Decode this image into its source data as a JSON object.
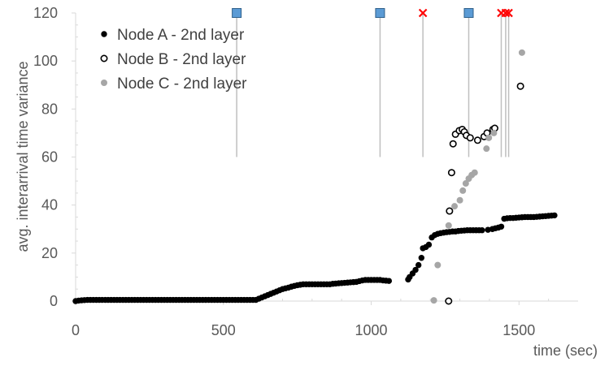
{
  "chart_data": {
    "type": "scatter",
    "xlabel": "time (sec)",
    "ylabel": "avg. interarrival time variance",
    "xlim": [
      0,
      1700
    ],
    "ylim": [
      0,
      120
    ],
    "x_ticks": [
      0,
      500,
      1000,
      1500
    ],
    "y_ticks": [
      0,
      20,
      40,
      60,
      80,
      100,
      120
    ],
    "x_tick_labels": [
      "0",
      "500",
      "1000",
      "1500"
    ],
    "y_tick_labels": [
      "0",
      "20",
      "40",
      "60",
      "80",
      "100",
      "120"
    ],
    "grid": false,
    "legend_position": "top-left",
    "colors": {
      "node_a": "#000000",
      "node_b_edge": "#000000",
      "node_c": "#a6a6a6",
      "event_line": "#bfbfbf",
      "square_marker": "#5b9bd5",
      "cross_marker": "#ff0000",
      "axis": "#d9d9d9"
    },
    "series": [
      {
        "name": "Node A - 2nd layer",
        "marker": "filled-circle",
        "points": [
          [
            0,
            0
          ],
          [
            10,
            0.2
          ],
          [
            20,
            0.3
          ],
          [
            30,
            0.4
          ],
          [
            40,
            0.5
          ],
          [
            50,
            0.5
          ],
          [
            60,
            0.5
          ],
          [
            70,
            0.5
          ],
          [
            80,
            0.5
          ],
          [
            90,
            0.5
          ],
          [
            100,
            0.5
          ],
          [
            110,
            0.5
          ],
          [
            120,
            0.5
          ],
          [
            130,
            0.5
          ],
          [
            140,
            0.5
          ],
          [
            150,
            0.5
          ],
          [
            160,
            0.5
          ],
          [
            170,
            0.5
          ],
          [
            180,
            0.5
          ],
          [
            190,
            0.5
          ],
          [
            200,
            0.5
          ],
          [
            210,
            0.5
          ],
          [
            220,
            0.5
          ],
          [
            230,
            0.5
          ],
          [
            240,
            0.5
          ],
          [
            250,
            0.5
          ],
          [
            260,
            0.5
          ],
          [
            270,
            0.5
          ],
          [
            280,
            0.5
          ],
          [
            290,
            0.5
          ],
          [
            300,
            0.5
          ],
          [
            310,
            0.5
          ],
          [
            320,
            0.5
          ],
          [
            330,
            0.5
          ],
          [
            340,
            0.5
          ],
          [
            350,
            0.5
          ],
          [
            360,
            0.5
          ],
          [
            370,
            0.5
          ],
          [
            380,
            0.5
          ],
          [
            390,
            0.5
          ],
          [
            400,
            0.5
          ],
          [
            410,
            0.5
          ],
          [
            420,
            0.5
          ],
          [
            430,
            0.5
          ],
          [
            440,
            0.5
          ],
          [
            450,
            0.5
          ],
          [
            460,
            0.5
          ],
          [
            470,
            0.5
          ],
          [
            480,
            0.5
          ],
          [
            490,
            0.5
          ],
          [
            500,
            0.5
          ],
          [
            510,
            0.5
          ],
          [
            520,
            0.5
          ],
          [
            530,
            0.5
          ],
          [
            540,
            0.5
          ],
          [
            550,
            0.5
          ],
          [
            560,
            0.5
          ],
          [
            570,
            0.5
          ],
          [
            580,
            0.5
          ],
          [
            590,
            0.5
          ],
          [
            600,
            0.5
          ],
          [
            610,
            0.5
          ],
          [
            620,
            1
          ],
          [
            630,
            1.5
          ],
          [
            640,
            2
          ],
          [
            650,
            2.5
          ],
          [
            660,
            3
          ],
          [
            670,
            3.5
          ],
          [
            680,
            4
          ],
          [
            690,
            4.5
          ],
          [
            700,
            5
          ],
          [
            710,
            5.3
          ],
          [
            720,
            5.6
          ],
          [
            730,
            6
          ],
          [
            740,
            6.3
          ],
          [
            750,
            6.6
          ],
          [
            760,
            6.8
          ],
          [
            770,
            7
          ],
          [
            780,
            7
          ],
          [
            790,
            7
          ],
          [
            800,
            7
          ],
          [
            810,
            7
          ],
          [
            820,
            7
          ],
          [
            830,
            7
          ],
          [
            840,
            7
          ],
          [
            850,
            7
          ],
          [
            860,
            7
          ],
          [
            870,
            7.2
          ],
          [
            880,
            7.3
          ],
          [
            890,
            7.4
          ],
          [
            900,
            7.5
          ],
          [
            910,
            7.6
          ],
          [
            920,
            7.7
          ],
          [
            930,
            7.8
          ],
          [
            940,
            7.9
          ],
          [
            950,
            8
          ],
          [
            960,
            8.3
          ],
          [
            970,
            8.6
          ],
          [
            980,
            8.8
          ],
          [
            990,
            8.8
          ],
          [
            1000,
            8.8
          ],
          [
            1010,
            8.8
          ],
          [
            1020,
            8.8
          ],
          [
            1030,
            8.8
          ],
          [
            1040,
            8.6
          ],
          [
            1050,
            8.5
          ],
          [
            1060,
            8.4
          ],
          [
            1125,
            9
          ],
          [
            1130,
            10
          ],
          [
            1140,
            11.5
          ],
          [
            1150,
            13
          ],
          [
            1160,
            15
          ],
          [
            1170,
            18
          ],
          [
            1175,
            22
          ],
          [
            1185,
            22.5
          ],
          [
            1195,
            23.5
          ],
          [
            1205,
            26.5
          ],
          [
            1215,
            27.5
          ],
          [
            1225,
            28
          ],
          [
            1235,
            28.3
          ],
          [
            1245,
            28.5
          ],
          [
            1255,
            28.7
          ],
          [
            1265,
            28.8
          ],
          [
            1275,
            29
          ],
          [
            1285,
            29
          ],
          [
            1295,
            29.2
          ],
          [
            1305,
            29.3
          ],
          [
            1315,
            29.4
          ],
          [
            1325,
            29.5
          ],
          [
            1335,
            29.5
          ],
          [
            1345,
            29.5
          ],
          [
            1355,
            29.5
          ],
          [
            1365,
            29.5
          ],
          [
            1375,
            29.5
          ],
          [
            1395,
            29.7
          ],
          [
            1410,
            30
          ],
          [
            1420,
            30.3
          ],
          [
            1430,
            30.6
          ],
          [
            1440,
            31
          ],
          [
            1450,
            34.3
          ],
          [
            1460,
            34.5
          ],
          [
            1470,
            34.6
          ],
          [
            1480,
            34.6
          ],
          [
            1490,
            34.7
          ],
          [
            1500,
            34.8
          ],
          [
            1510,
            34.9
          ],
          [
            1520,
            35
          ],
          [
            1530,
            35
          ],
          [
            1540,
            35
          ],
          [
            1550,
            35
          ],
          [
            1560,
            35.1
          ],
          [
            1570,
            35.2
          ],
          [
            1580,
            35.3
          ],
          [
            1590,
            35.4
          ],
          [
            1600,
            35.5
          ],
          [
            1610,
            35.6
          ],
          [
            1620,
            35.7
          ]
        ]
      },
      {
        "name": "Node B - 2nd layer",
        "marker": "open-circle",
        "points": [
          [
            1262,
            0
          ],
          [
            1265,
            37.5
          ],
          [
            1272,
            53.5
          ],
          [
            1277,
            65.5
          ],
          [
            1285,
            69.5
          ],
          [
            1298,
            71
          ],
          [
            1308,
            71.5
          ],
          [
            1315,
            70.5
          ],
          [
            1322,
            69
          ],
          [
            1335,
            68
          ],
          [
            1360,
            67
          ],
          [
            1382,
            68.5
          ],
          [
            1392,
            70
          ],
          [
            1412,
            71.5
          ],
          [
            1418,
            72
          ],
          [
            1505,
            89.5
          ]
        ]
      },
      {
        "name": "Node C - 2nd layer",
        "marker": "filled-circle-gray",
        "points": [
          [
            1212,
            0.3
          ],
          [
            1225,
            15
          ],
          [
            1262,
            31.5
          ],
          [
            1282,
            39.5
          ],
          [
            1300,
            42
          ],
          [
            1310,
            46
          ],
          [
            1320,
            49
          ],
          [
            1330,
            51
          ],
          [
            1340,
            52.5
          ],
          [
            1350,
            53.5
          ],
          [
            1390,
            63.5
          ],
          [
            1398,
            68
          ],
          [
            1415,
            70
          ],
          [
            1510,
            103.5
          ]
        ]
      }
    ],
    "events": {
      "line_bottom_y": 60,
      "square_markers_x": [
        545,
        1030,
        1330
      ],
      "cross_markers_x": [
        1175,
        1440,
        1455,
        1465
      ],
      "marker_y": 120
    }
  }
}
